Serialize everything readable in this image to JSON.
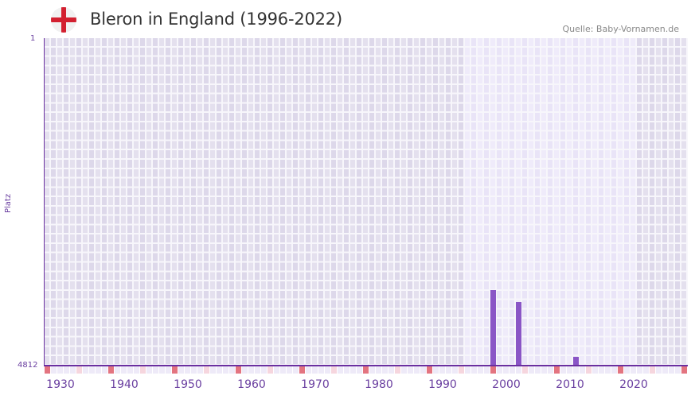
{
  "header": {
    "flag_icon": "england-flag-icon",
    "title": "Bleron in England (1996-2022)",
    "source": "Quelle: Baby-Vornamen.de"
  },
  "colors": {
    "axis": "#6a2fa0",
    "bar": "#8a55c6",
    "grid_bg": "#e4e0ee",
    "grid_bg_alt": "#ddd8ea",
    "highlight_bg": "#efebfa",
    "highlight_bg_alt": "#e9e4f7",
    "decade_marker": "#e37480",
    "half_decade_marker": "#f6d6de",
    "minor_marker": "#eeeaf8"
  },
  "layout": {
    "first_column_year": 1928,
    "num_columns": 101,
    "highlight_start_col": 66,
    "highlight_end_col": 92
  },
  "chart_data": {
    "type": "bar",
    "title": "Bleron in England (1996-2022)",
    "xlabel": "",
    "ylabel": "Platz",
    "y_inverted": true,
    "ylim": [
      4812,
      1
    ],
    "y_ticks": [
      "1",
      "4812"
    ],
    "x_ticks": [
      "1930",
      "1940",
      "1950",
      "1960",
      "1970",
      "1980",
      "1990",
      "2000",
      "2010",
      "2020"
    ],
    "highlight_range": [
      1996,
      2022
    ],
    "bars": [
      {
        "col": 70,
        "year": 1998,
        "rank": 3700
      },
      {
        "col": 74,
        "year": 2002,
        "rank": 3880
      },
      {
        "col": 83,
        "year": 2011,
        "rank": 4680
      }
    ],
    "source": "Quelle: Baby-Vornamen.de"
  },
  "axis": {
    "y_top_label": "1",
    "y_bottom_label": "4812",
    "y_title": "Platz"
  }
}
